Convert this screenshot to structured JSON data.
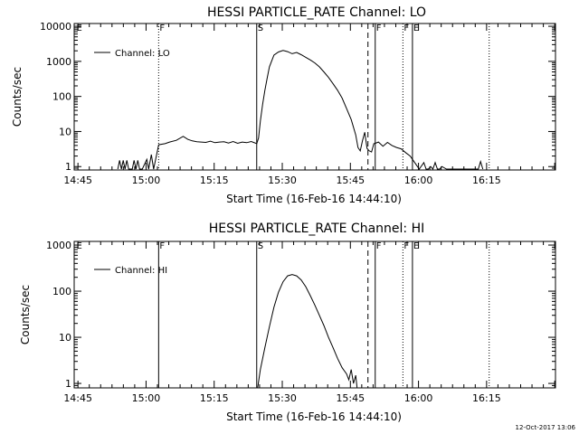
{
  "footer": {
    "date_stamp": "12-Oct-2017 13:06"
  },
  "chart_data": [
    {
      "type": "line",
      "title": "HESSI PARTICLE_RATE Channel: LO",
      "xlabel": "Start Time (16-Feb-16 14:44:10)",
      "ylabel": "Counts/sec",
      "yscale": "log",
      "ylim": [
        0.8,
        12000
      ],
      "xlim_minutes": [
        0,
        106
      ],
      "x_ticks": [
        {
          "label": "14:45",
          "min": 0.83
        },
        {
          "label": "15:00",
          "min": 15.83
        },
        {
          "label": "15:15",
          "min": 30.83
        },
        {
          "label": "15:30",
          "min": 45.83
        },
        {
          "label": "15:45",
          "min": 60.83
        },
        {
          "label": "16:00",
          "min": 75.83
        },
        {
          "label": "16:15",
          "min": 90.83
        }
      ],
      "y_ticks": [
        {
          "label": "1",
          "v": 1
        },
        {
          "label": "10",
          "v": 10
        },
        {
          "label": "100",
          "v": 100
        },
        {
          "label": "1000",
          "v": 1000
        },
        {
          "label": "10000",
          "v": 10000
        }
      ],
      "legend": {
        "label": "Channel: LO",
        "placement": "top-left"
      },
      "flags": [
        {
          "label": "E",
          "min": 0.3,
          "style": "none"
        },
        {
          "label": "F",
          "min": 18.6,
          "style": "dotted"
        },
        {
          "label": "S",
          "min": 40.2,
          "style": "solid"
        },
        {
          "label": "",
          "min": 64.7,
          "style": "dashed"
        },
        {
          "label": "F",
          "min": 66.3,
          "style": "solid"
        },
        {
          "label": "F",
          "min": 72.4,
          "style": "dotted"
        },
        {
          "label": "E",
          "min": 74.5,
          "style": "solid"
        },
        {
          "label": "",
          "min": 91.4,
          "style": "dotted"
        }
      ],
      "series": [
        {
          "name": "Channel: LO",
          "x_minutes": [
            9.6,
            10.0,
            10.4,
            10.8,
            11.2,
            11.6,
            12.0,
            12.8,
            13.2,
            13.6,
            14.0,
            14.4,
            15.0,
            16.0,
            16.4,
            17.0,
            17.5,
            18.6,
            20.0,
            21.0,
            22.5,
            24.0,
            25.0,
            26.0,
            27.0,
            28.0,
            29.0,
            30.0,
            31.0,
            32.0,
            33.0,
            34.0,
            35.0,
            36.0,
            37.0,
            38.0,
            39.0,
            40.2,
            40.6,
            41.0,
            41.5,
            42.0,
            42.5,
            43.0,
            44.0,
            45.0,
            46.0,
            47.0,
            48.0,
            49.0,
            50.0,
            51.0,
            52.0,
            53.0,
            54.0,
            55.0,
            56.0,
            57.0,
            58.0,
            59.0,
            60.0,
            61.0,
            62.0,
            62.5,
            63.0,
            63.5,
            64.0,
            64.5,
            65.0,
            65.5,
            66.0,
            66.3,
            67.0,
            68.0,
            69.0,
            70.0,
            71.0,
            72.0,
            73.0,
            74.0,
            75.0,
            76.0,
            77.0,
            77.5,
            78.0,
            78.5,
            79.0,
            79.5,
            80.0,
            80.5,
            81.0,
            82.0,
            83.0,
            84.0,
            85.0,
            86.0,
            87.0,
            88.0,
            89.0,
            89.5,
            90.0
          ],
          "y": [
            0.85,
            1.5,
            0.85,
            1.5,
            0.85,
            1.5,
            0.85,
            0.85,
            1.5,
            0.85,
            1.5,
            0.85,
            0.85,
            1.6,
            0.85,
            2.2,
            0.85,
            4.2,
            4.5,
            5.0,
            5.6,
            7.3,
            6.0,
            5.4,
            5.1,
            5.0,
            4.9,
            5.3,
            4.8,
            5.0,
            5.1,
            4.7,
            5.2,
            4.6,
            5.0,
            4.8,
            5.2,
            4.5,
            6.5,
            20,
            60,
            150,
            330,
            700,
            1500,
            1850,
            2050,
            1900,
            1650,
            1800,
            1550,
            1300,
            1100,
            900,
            700,
            500,
            350,
            230,
            150,
            90,
            45,
            22,
            8,
            3.5,
            2.8,
            5.5,
            9.5,
            3.3,
            2.8,
            2.6,
            4.5,
            4.6,
            5.0,
            3.8,
            4.9,
            4.0,
            3.5,
            3.2,
            2.5,
            2.0,
            1.3,
            0.85,
            1.3,
            0.85,
            0.85,
            1.0,
            0.85,
            1.3,
            0.85,
            0.85,
            1.0,
            0.85,
            0.85,
            0.85,
            0.85,
            0.85,
            0.85,
            0.85,
            0.85,
            1.4,
            0.85
          ]
        }
      ]
    },
    {
      "type": "line",
      "title": "HESSI PARTICLE_RATE Channel: HI",
      "xlabel": "Start Time (16-Feb-16 14:44:10)",
      "ylabel": "Counts/sec",
      "yscale": "log",
      "ylim": [
        0.8,
        1200
      ],
      "xlim_minutes": [
        0,
        106
      ],
      "x_ticks": [
        {
          "label": "14:45",
          "min": 0.83
        },
        {
          "label": "15:00",
          "min": 15.83
        },
        {
          "label": "15:15",
          "min": 30.83
        },
        {
          "label": "15:30",
          "min": 45.83
        },
        {
          "label": "15:45",
          "min": 60.83
        },
        {
          "label": "16:00",
          "min": 75.83
        },
        {
          "label": "16:15",
          "min": 90.83
        }
      ],
      "y_ticks": [
        {
          "label": "1",
          "v": 1
        },
        {
          "label": "10",
          "v": 10
        },
        {
          "label": "100",
          "v": 100
        },
        {
          "label": "1000",
          "v": 1000
        }
      ],
      "legend": {
        "label": "Channel: HI",
        "placement": "top-left"
      },
      "flags": [
        {
          "label": "E",
          "min": 0.3,
          "style": "none"
        },
        {
          "label": "F",
          "min": 18.6,
          "style": "solid"
        },
        {
          "label": "S",
          "min": 40.2,
          "style": "solid"
        },
        {
          "label": "",
          "min": 64.7,
          "style": "dashed"
        },
        {
          "label": "F",
          "min": 66.3,
          "style": "solid"
        },
        {
          "label": "F",
          "min": 72.4,
          "style": "dotted"
        },
        {
          "label": "E",
          "min": 74.5,
          "style": "solid"
        },
        {
          "label": "",
          "min": 91.4,
          "style": "dotted"
        }
      ],
      "series": [
        {
          "name": "Channel: HI",
          "x_minutes": [
            40.4,
            41.0,
            42.0,
            43.0,
            44.0,
            45.0,
            46.0,
            47.0,
            48.0,
            49.0,
            50.0,
            51.0,
            52.0,
            53.0,
            54.0,
            55.0,
            56.0,
            57.0,
            58.0,
            59.0,
            60.0,
            60.5,
            61.0,
            61.5,
            62.0,
            62.3
          ],
          "y": [
            0.8,
            2.0,
            6.0,
            17,
            45,
            95,
            160,
            215,
            230,
            215,
            175,
            125,
            80,
            50,
            30,
            18,
            10,
            6.0,
            3.5,
            2.2,
            1.6,
            1.2,
            2.0,
            1.0,
            1.5,
            0.8
          ]
        }
      ]
    }
  ]
}
